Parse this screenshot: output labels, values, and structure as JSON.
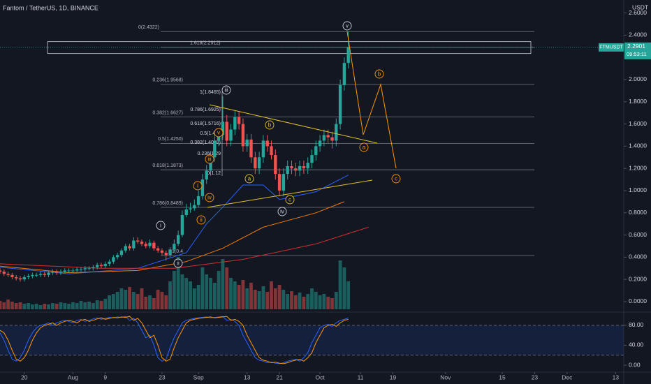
{
  "chart_data": [
    {
      "type": "candlestick",
      "title": "Fantom / TetherUS, 1D, BINANCE",
      "y_label": "USDT",
      "up_color": "#26a69a",
      "down_color": "#ef5350",
      "x": [
        14,
        15,
        16,
        17,
        18,
        19,
        20,
        21,
        22,
        23,
        24,
        25,
        26,
        27,
        28,
        29,
        30,
        31,
        32,
        33,
        34,
        35,
        36,
        37,
        38,
        39,
        40,
        41,
        42,
        43,
        44,
        45,
        46,
        47,
        48,
        49,
        50,
        51,
        52,
        53,
        54,
        55,
        56,
        57,
        58,
        59,
        60,
        61,
        62,
        63,
        64,
        65,
        66,
        67,
        68,
        69,
        70,
        71,
        72,
        73,
        74,
        75,
        76,
        77,
        78,
        79,
        80,
        81,
        82,
        83,
        84,
        85,
        86,
        87,
        88,
        89,
        90,
        91,
        92,
        93,
        94,
        95,
        96,
        97,
        98,
        99,
        100
      ],
      "open": [
        0.28,
        0.27,
        0.25,
        0.24,
        0.22,
        0.21,
        0.2,
        0.22,
        0.23,
        0.24,
        0.24,
        0.25,
        0.24,
        0.26,
        0.27,
        0.26,
        0.27,
        0.28,
        0.28,
        0.28,
        0.29,
        0.29,
        0.3,
        0.3,
        0.31,
        0.33,
        0.32,
        0.34,
        0.36,
        0.4,
        0.42,
        0.46,
        0.5,
        0.48,
        0.55,
        0.54,
        0.52,
        0.5,
        0.53,
        0.48,
        0.46,
        0.44,
        0.42,
        0.47,
        0.52,
        0.6,
        0.78,
        0.83,
        0.84,
        0.87,
        0.95,
        1.1,
        1.18,
        1.3,
        1.45,
        1.5,
        1.62,
        1.45,
        1.55,
        1.66,
        1.6,
        1.4,
        1.46,
        1.3,
        1.2,
        1.3,
        1.45,
        1.4,
        1.32,
        1.15,
        1.0,
        1.15,
        1.22,
        1.2,
        1.18,
        1.22,
        1.2,
        1.25,
        1.32,
        1.4,
        1.45,
        1.5,
        1.48,
        1.45,
        1.6,
        1.95,
        2.15
      ],
      "high": [
        0.3,
        0.29,
        0.27,
        0.26,
        0.24,
        0.23,
        0.24,
        0.25,
        0.26,
        0.26,
        0.27,
        0.27,
        0.28,
        0.29,
        0.29,
        0.29,
        0.3,
        0.3,
        0.3,
        0.31,
        0.31,
        0.32,
        0.32,
        0.33,
        0.35,
        0.35,
        0.36,
        0.38,
        0.42,
        0.44,
        0.48,
        0.52,
        0.52,
        0.58,
        0.58,
        0.56,
        0.54,
        0.56,
        0.55,
        0.5,
        0.48,
        0.46,
        0.49,
        0.56,
        0.64,
        0.82,
        0.88,
        0.89,
        0.92,
        1.0,
        1.15,
        1.23,
        1.35,
        1.5,
        1.55,
        1.85,
        1.68,
        1.6,
        1.72,
        1.71,
        1.65,
        1.51,
        1.51,
        1.35,
        1.35,
        1.5,
        1.5,
        1.45,
        1.37,
        1.2,
        1.2,
        1.27,
        1.27,
        1.25,
        1.27,
        1.27,
        1.3,
        1.37,
        1.45,
        1.5,
        1.55,
        1.55,
        1.53,
        1.65,
        2.0,
        2.2,
        2.43
      ],
      "low": [
        0.25,
        0.23,
        0.22,
        0.2,
        0.19,
        0.18,
        0.18,
        0.2,
        0.21,
        0.22,
        0.22,
        0.22,
        0.22,
        0.24,
        0.24,
        0.24,
        0.25,
        0.26,
        0.26,
        0.26,
        0.27,
        0.27,
        0.28,
        0.28,
        0.29,
        0.3,
        0.3,
        0.32,
        0.34,
        0.38,
        0.4,
        0.44,
        0.46,
        0.46,
        0.52,
        0.5,
        0.48,
        0.48,
        0.46,
        0.44,
        0.42,
        0.37,
        0.4,
        0.45,
        0.5,
        0.58,
        0.76,
        0.8,
        0.82,
        0.85,
        0.92,
        1.06,
        1.14,
        1.26,
        1.4,
        1.46,
        1.4,
        1.4,
        1.5,
        1.55,
        1.35,
        1.35,
        1.25,
        1.15,
        1.15,
        1.25,
        1.35,
        1.28,
        1.1,
        0.95,
        0.95,
        1.1,
        1.15,
        1.13,
        1.13,
        1.15,
        1.15,
        1.2,
        1.27,
        1.35,
        1.4,
        1.43,
        1.38,
        1.4,
        1.55,
        1.9,
        2.1
      ],
      "close": [
        0.27,
        0.25,
        0.24,
        0.22,
        0.21,
        0.2,
        0.22,
        0.23,
        0.24,
        0.24,
        0.25,
        0.24,
        0.26,
        0.27,
        0.26,
        0.27,
        0.28,
        0.28,
        0.28,
        0.29,
        0.29,
        0.3,
        0.3,
        0.31,
        0.33,
        0.32,
        0.34,
        0.36,
        0.4,
        0.42,
        0.46,
        0.5,
        0.48,
        0.55,
        0.54,
        0.52,
        0.5,
        0.53,
        0.48,
        0.46,
        0.44,
        0.42,
        0.47,
        0.52,
        0.6,
        0.78,
        0.83,
        0.84,
        0.87,
        0.95,
        1.1,
        1.18,
        1.3,
        1.45,
        1.5,
        1.62,
        1.45,
        1.55,
        1.66,
        1.6,
        1.4,
        1.46,
        1.3,
        1.2,
        1.3,
        1.45,
        1.4,
        1.32,
        1.15,
        1.0,
        1.15,
        1.22,
        1.2,
        1.18,
        1.22,
        1.2,
        1.25,
        1.32,
        1.4,
        1.45,
        1.5,
        1.48,
        1.45,
        1.6,
        1.95,
        2.15,
        2.29
      ],
      "volume": [
        12,
        10,
        14,
        11,
        9,
        10,
        8,
        9,
        7,
        8,
        6,
        8,
        7,
        9,
        8,
        10,
        9,
        8,
        10,
        9,
        12,
        10,
        11,
        9,
        13,
        12,
        15,
        20,
        22,
        25,
        30,
        28,
        32,
        25,
        22,
        30,
        18,
        20,
        16,
        28,
        25,
        20,
        40,
        55,
        75,
        50,
        45,
        40,
        30,
        35,
        60,
        50,
        45,
        38,
        55,
        72,
        60,
        45,
        40,
        35,
        42,
        30,
        38,
        28,
        26,
        33,
        25,
        40,
        30,
        35,
        28,
        22,
        26,
        20,
        24,
        18,
        22,
        30,
        25,
        20,
        22,
        18,
        16,
        25,
        70,
        60,
        40
      ],
      "moving_averages": [
        {
          "color": "#2962ff",
          "x": [
            14,
            31,
            48,
            60,
            65,
            69,
            74,
            79,
            83,
            92,
            100
          ],
          "values": [
            0.31,
            0.25,
            0.3,
            0.44,
            0.7,
            0.85,
            1.05,
            1.05,
            0.92,
            0.99,
            1.14
          ]
        },
        {
          "color": "#f57c00",
          "x": [
            14,
            31,
            48,
            60,
            69,
            79,
            92,
            99
          ],
          "values": [
            0.32,
            0.26,
            0.28,
            0.36,
            0.48,
            0.67,
            0.8,
            0.9
          ]
        },
        {
          "color": "#d32f2f",
          "x": [
            14,
            39,
            57,
            74,
            92,
            105
          ],
          "values": [
            0.34,
            0.3,
            0.3,
            0.38,
            0.52,
            0.67
          ]
        }
      ],
      "xlim": [
        14,
        168
      ],
      "xticks": [
        {
          "value": 20,
          "label": "20"
        },
        {
          "value": 32,
          "label": "Aug"
        },
        {
          "value": 40,
          "label": "9"
        },
        {
          "value": 54,
          "label": "23"
        },
        {
          "value": 63,
          "label": "Sep"
        },
        {
          "value": 75,
          "label": "13"
        },
        {
          "value": 83,
          "label": "21"
        },
        {
          "value": 93,
          "label": "Oct"
        },
        {
          "value": 103,
          "label": "11"
        },
        {
          "value": 111,
          "label": "19"
        },
        {
          "value": 124,
          "label": "Nov"
        },
        {
          "value": 138,
          "label": "15"
        },
        {
          "value": 146,
          "label": "23"
        },
        {
          "value": 154,
          "label": "Dec"
        },
        {
          "value": 166,
          "label": "13"
        }
      ],
      "ylim": [
        -0.082,
        2.698
      ],
      "yticks": [
        {
          "value": 0,
          "label": "0.0000"
        },
        {
          "value": 0.2,
          "label": "0.2000"
        },
        {
          "value": 0.4,
          "label": "0.4000"
        },
        {
          "value": 0.6,
          "label": "0.6000"
        },
        {
          "value": 0.8,
          "label": "0.8000"
        },
        {
          "value": 1,
          "label": "1.0000"
        },
        {
          "value": 1.2,
          "label": "1.2000"
        },
        {
          "value": 1.4,
          "label": "1.4000"
        },
        {
          "value": 1.6,
          "label": "1.6000"
        },
        {
          "value": 1.8,
          "label": "1.8000"
        },
        {
          "value": 2,
          "label": "2.0000"
        },
        {
          "value": 2.4,
          "label": "2.4000"
        },
        {
          "value": 2.6,
          "label": "2.6000"
        }
      ],
      "fib_levels": [
        {
          "label": "0(2.4322)",
          "value": 2.4322
        },
        {
          "label": "1.618(2.2912)",
          "value": 2.2912
        },
        {
          "label": "0.236(1.9568)",
          "value": 1.9568
        },
        {
          "label": "0.382(1.6627)",
          "value": 1.6627
        },
        {
          "label": "0.5(1.4250)",
          "value": 1.425
        },
        {
          "label": "0.618(1.1873)",
          "value": 1.1873
        },
        {
          "label": "0.786(0.8489)",
          "value": 0.8489
        },
        {
          "label": "1(0.4",
          "value": 0.415
        }
      ],
      "fib_notes": [
        "1(1.8465)",
        "0.786(1.6925)",
        "0.618(1.5716)",
        "0.5(1.486",
        "0.382(1.4018)",
        "0.236(1.29",
        "0(1.12"
      ],
      "wave_labels": [
        {
          "text": "i",
          "color": "#d1d4dc"
        },
        {
          "text": "ii",
          "color": "#d1d4dc"
        },
        {
          "text": "iii",
          "color": "#d1d4dc"
        },
        {
          "text": "iv",
          "color": "#d1d4dc"
        },
        {
          "text": "v",
          "color": "#d1d4dc"
        },
        {
          "text": "i",
          "color": "#ff9800"
        },
        {
          "text": "ii",
          "color": "#ff9800"
        },
        {
          "text": "iii",
          "color": "#ff9800"
        },
        {
          "text": "iv",
          "color": "#ff9800"
        },
        {
          "text": "v",
          "color": "#ff9800"
        },
        {
          "text": "a",
          "color": "#e6c229"
        },
        {
          "text": "b",
          "color": "#e6c229"
        },
        {
          "text": "c",
          "color": "#e6c229"
        },
        {
          "text": "a",
          "color": "#ff9800"
        },
        {
          "text": "b",
          "color": "#ff9800"
        },
        {
          "text": "c",
          "color": "#ff9800"
        }
      ],
      "price_tag": {
        "symbol": "FTMUSDT",
        "value": 2.2901,
        "label": "2.2901",
        "countdown": "09:53:11"
      }
    },
    {
      "type": "line",
      "x": [
        14,
        15,
        16,
        17,
        18,
        19,
        20,
        21,
        22,
        23,
        24,
        25,
        26,
        27,
        28,
        29,
        30,
        31,
        32,
        33,
        34,
        35,
        36,
        37,
        38,
        39,
        40,
        41,
        42,
        43,
        44,
        45,
        46,
        47,
        48,
        49,
        50,
        51,
        52,
        53,
        54,
        55,
        56,
        57,
        58,
        59,
        60,
        61,
        62,
        63,
        64,
        65,
        66,
        67,
        68,
        69,
        70,
        71,
        72,
        73,
        74,
        75,
        76,
        77,
        78,
        79,
        80,
        81,
        82,
        83,
        84,
        85,
        86,
        87,
        88,
        89,
        90,
        91,
        92,
        93,
        94,
        95,
        96,
        97,
        98,
        99,
        100
      ],
      "series": [
        {
          "color": "#2962ff",
          "values": [
            65,
            50,
            30,
            12,
            8,
            15,
            30,
            50,
            65,
            75,
            80,
            82,
            85,
            80,
            85,
            88,
            90,
            88,
            85,
            90,
            92,
            88,
            90,
            93,
            95,
            92,
            94,
            96,
            95,
            97,
            96,
            98,
            90,
            94,
            85,
            70,
            55,
            60,
            40,
            15,
            8,
            12,
            35,
            55,
            70,
            85,
            90,
            92,
            94,
            95,
            96,
            97,
            95,
            96,
            97,
            98,
            90,
            92,
            88,
            80,
            60,
            45,
            30,
            15,
            10,
            8,
            5,
            6,
            4,
            3,
            5,
            8,
            10,
            12,
            8,
            15,
            25,
            45,
            60,
            75,
            80,
            82,
            78,
            85,
            90,
            92,
            95
          ]
        },
        {
          "color": "#ff9800",
          "values": [
            70,
            65,
            50,
            30,
            12,
            8,
            15,
            30,
            50,
            65,
            75,
            80,
            82,
            85,
            80,
            85,
            88,
            90,
            88,
            85,
            90,
            92,
            88,
            90,
            93,
            95,
            92,
            94,
            96,
            95,
            97,
            96,
            98,
            90,
            94,
            85,
            70,
            55,
            60,
            40,
            15,
            8,
            12,
            35,
            55,
            70,
            85,
            90,
            92,
            94,
            95,
            96,
            97,
            95,
            96,
            97,
            98,
            90,
            92,
            88,
            80,
            60,
            45,
            30,
            15,
            10,
            8,
            5,
            6,
            4,
            3,
            5,
            8,
            10,
            12,
            8,
            15,
            25,
            45,
            60,
            75,
            80,
            82,
            78,
            85,
            90,
            92
          ]
        }
      ],
      "band": [
        20,
        80
      ],
      "ylim": [
        -12.6,
        99.6
      ],
      "yticks": [
        {
          "value": 0,
          "label": "0.00"
        },
        {
          "value": 40,
          "label": "40.00"
        },
        {
          "value": 80,
          "label": "80.00"
        }
      ]
    }
  ]
}
